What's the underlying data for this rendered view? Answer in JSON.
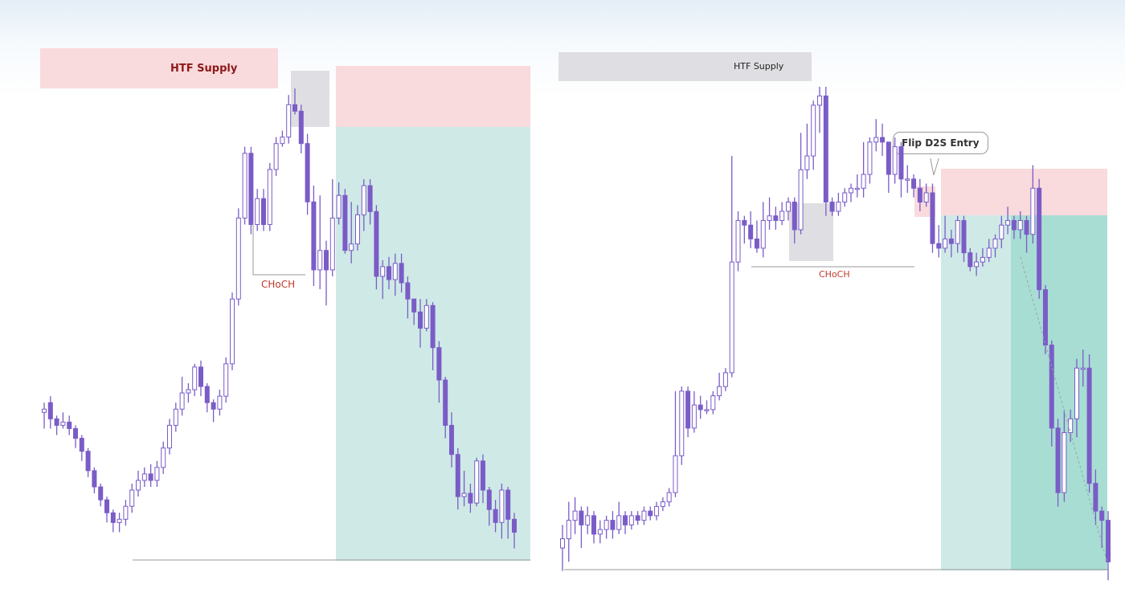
{
  "colors": {
    "candle": "#7a5cc7",
    "candle_fill_up": "#ffffff",
    "supply_zone": "#f9dadd",
    "grey_zone": "#dfdfe3",
    "target_zone": "#cfeae6",
    "target_zone_dark": "#a8ddd4",
    "structure_line": "#9a9a9a",
    "choch_text": "#c0392b"
  },
  "left_chart": {
    "htf_label": "HTF Supply",
    "choch_label": "CHoCH"
  },
  "right_chart": {
    "htf_label": "HTF Supply",
    "choch_label": "CHoCH",
    "entry_label": "Flip D2S Entry"
  },
  "chart_data": [
    {
      "type": "candlestick",
      "ohlc": [
        [
          75,
          76,
          70,
          78
        ],
        [
          78,
          73,
          70,
          80
        ],
        [
          73,
          71,
          68,
          74
        ],
        [
          71,
          72,
          70,
          75
        ],
        [
          72,
          70,
          68,
          74
        ],
        [
          70,
          67,
          64,
          71
        ],
        [
          67,
          63,
          60,
          68
        ],
        [
          63,
          57,
          55,
          64
        ],
        [
          57,
          52,
          50,
          58
        ],
        [
          52,
          48,
          46,
          53
        ],
        [
          48,
          44,
          41,
          49
        ],
        [
          44,
          41,
          38,
          45
        ],
        [
          41,
          42,
          38,
          44
        ],
        [
          42,
          46,
          40,
          48
        ],
        [
          46,
          51,
          44,
          53
        ],
        [
          51,
          54,
          49,
          57
        ],
        [
          54,
          56,
          52,
          58
        ],
        [
          56,
          54,
          52,
          59
        ],
        [
          54,
          58,
          52,
          60
        ],
        [
          58,
          64,
          56,
          66
        ],
        [
          64,
          71,
          62,
          73
        ],
        [
          71,
          76,
          69,
          78
        ],
        [
          76,
          81,
          74,
          86
        ],
        [
          81,
          82,
          78,
          84
        ],
        [
          82,
          89,
          80,
          90
        ],
        [
          89,
          83,
          80,
          91
        ],
        [
          83,
          78,
          75,
          84
        ],
        [
          78,
          76,
          72,
          79
        ],
        [
          76,
          80,
          74,
          82
        ],
        [
          80,
          90,
          78,
          92
        ],
        [
          90,
          110,
          88,
          112
        ],
        [
          110,
          135,
          108,
          138
        ],
        [
          135,
          155,
          133,
          157
        ],
        [
          155,
          133,
          130,
          157
        ],
        [
          133,
          141,
          131,
          144
        ],
        [
          141,
          133,
          131,
          144
        ],
        [
          133,
          150,
          131,
          152
        ],
        [
          150,
          158,
          148,
          160
        ],
        [
          158,
          160,
          157,
          162
        ],
        [
          160,
          170,
          158,
          173
        ],
        [
          170,
          168,
          167,
          175
        ],
        [
          168,
          158,
          155,
          170
        ],
        [
          158,
          140,
          136,
          161
        ],
        [
          140,
          119,
          114,
          145
        ],
        [
          119,
          125,
          113,
          142
        ],
        [
          125,
          119,
          108,
          128
        ],
        [
          119,
          135,
          117,
          147
        ],
        [
          135,
          142,
          133,
          146
        ],
        [
          142,
          125,
          124,
          144
        ],
        [
          125,
          127,
          121,
          140
        ],
        [
          127,
          136,
          125,
          139
        ],
        [
          136,
          145,
          131,
          147
        ],
        [
          145,
          137,
          133,
          147
        ],
        [
          137,
          117,
          113,
          139
        ],
        [
          117,
          120,
          110,
          122
        ],
        [
          120,
          116,
          113,
          123
        ],
        [
          116,
          121,
          111,
          124
        ],
        [
          121,
          115,
          112,
          124
        ],
        [
          115,
          110,
          104,
          117
        ],
        [
          110,
          106,
          102,
          110
        ],
        [
          106,
          101,
          95,
          110
        ],
        [
          101,
          108,
          100,
          110
        ],
        [
          108,
          95,
          88,
          109
        ],
        [
          95,
          85,
          78,
          97
        ],
        [
          85,
          71,
          67,
          86
        ],
        [
          71,
          62,
          58,
          75
        ],
        [
          62,
          49,
          45,
          64
        ],
        [
          49,
          50,
          46,
          57
        ],
        [
          50,
          47,
          44,
          53
        ],
        [
          47,
          60,
          46,
          61
        ],
        [
          60,
          51,
          47,
          62
        ],
        [
          51,
          45,
          40,
          52
        ],
        [
          45,
          41,
          38,
          48
        ],
        [
          41,
          51,
          36,
          53
        ],
        [
          51,
          42,
          36,
          52
        ],
        [
          42,
          38,
          33,
          44
        ]
      ]
    },
    {
      "type": "candlestick",
      "ohlc": [
        [
          28,
          30,
          23,
          33
        ],
        [
          30,
          34,
          25,
          38
        ],
        [
          34,
          36,
          31,
          39
        ],
        [
          36,
          33,
          28,
          37
        ],
        [
          33,
          35,
          31,
          37
        ],
        [
          35,
          31,
          29,
          36
        ],
        [
          31,
          32,
          29,
          34
        ],
        [
          32,
          34,
          30,
          35
        ],
        [
          34,
          32,
          30,
          36
        ],
        [
          32,
          35,
          31,
          38
        ],
        [
          35,
          33,
          31,
          36
        ],
        [
          33,
          35,
          32,
          36
        ],
        [
          35,
          34,
          33,
          36
        ],
        [
          34,
          36,
          33,
          37
        ],
        [
          36,
          35,
          34,
          37
        ],
        [
          35,
          37,
          34,
          38
        ],
        [
          37,
          38,
          36,
          39
        ],
        [
          38,
          40,
          37,
          41
        ],
        [
          40,
          48,
          39,
          62
        ],
        [
          48,
          62,
          46,
          63
        ],
        [
          62,
          54,
          52,
          63
        ],
        [
          54,
          59,
          53,
          62
        ],
        [
          59,
          58,
          56,
          61
        ],
        [
          58,
          58,
          57,
          60
        ],
        [
          58,
          61,
          57,
          62
        ],
        [
          61,
          63,
          60,
          66
        ],
        [
          63,
          66,
          62,
          67
        ],
        [
          66,
          90,
          65,
          113
        ],
        [
          90,
          99,
          88,
          101
        ],
        [
          99,
          98,
          94,
          100
        ],
        [
          98,
          95,
          93,
          101
        ],
        [
          95,
          93,
          92,
          99
        ],
        [
          93,
          99,
          91,
          103
        ],
        [
          99,
          100,
          97,
          104
        ],
        [
          100,
          99,
          97,
          102
        ],
        [
          99,
          101,
          98,
          103
        ],
        [
          101,
          103,
          99,
          104
        ],
        [
          103,
          97,
          94,
          104
        ],
        [
          97,
          110,
          96,
          118
        ],
        [
          110,
          113,
          108,
          120
        ],
        [
          113,
          124,
          110,
          125
        ],
        [
          124,
          126,
          118,
          128
        ],
        [
          126,
          103,
          100,
          128
        ],
        [
          103,
          101,
          100,
          104
        ],
        [
          101,
          103,
          100,
          105
        ],
        [
          103,
          105,
          102,
          106
        ],
        [
          105,
          106,
          103,
          107
        ],
        [
          106,
          106,
          104,
          109
        ],
        [
          106,
          109,
          104,
          116
        ],
        [
          109,
          116,
          107,
          117
        ],
        [
          116,
          117,
          114,
          121
        ],
        [
          117,
          116,
          113,
          120
        ],
        [
          116,
          109,
          105,
          116
        ],
        [
          109,
          115,
          107,
          117
        ],
        [
          115,
          108,
          104,
          116
        ],
        [
          108,
          108,
          105,
          111
        ],
        [
          108,
          106,
          104,
          109
        ],
        [
          106,
          103,
          101,
          108
        ],
        [
          103,
          105,
          102,
          107
        ],
        [
          105,
          94,
          92,
          107
        ],
        [
          94,
          93,
          91,
          98
        ],
        [
          93,
          95,
          92,
          100
        ],
        [
          95,
          94,
          91,
          97
        ],
        [
          94,
          99,
          92,
          100
        ],
        [
          99,
          92,
          90,
          100
        ],
        [
          92,
          89,
          88,
          93
        ],
        [
          89,
          90,
          87,
          92
        ],
        [
          90,
          91,
          89,
          93
        ],
        [
          91,
          93,
          90,
          95
        ],
        [
          93,
          95,
          91,
          96
        ],
        [
          95,
          98,
          93,
          100
        ],
        [
          98,
          99,
          96,
          102
        ],
        [
          99,
          97,
          95,
          100
        ],
        [
          97,
          99,
          95,
          101
        ],
        [
          99,
          96,
          92,
          100
        ],
        [
          96,
          106,
          94,
          111
        ],
        [
          106,
          84,
          82,
          108
        ],
        [
          84,
          72,
          70,
          85
        ],
        [
          72,
          54,
          50,
          73
        ],
        [
          54,
          40,
          37,
          56
        ],
        [
          40,
          53,
          38,
          58
        ],
        [
          53,
          56,
          51,
          58
        ],
        [
          56,
          67,
          52,
          69
        ],
        [
          67,
          67,
          63,
          71
        ],
        [
          67,
          42,
          40,
          70
        ],
        [
          42,
          36,
          33,
          45
        ],
        [
          36,
          34,
          28,
          37
        ],
        [
          34,
          25,
          21,
          36
        ]
      ]
    }
  ]
}
